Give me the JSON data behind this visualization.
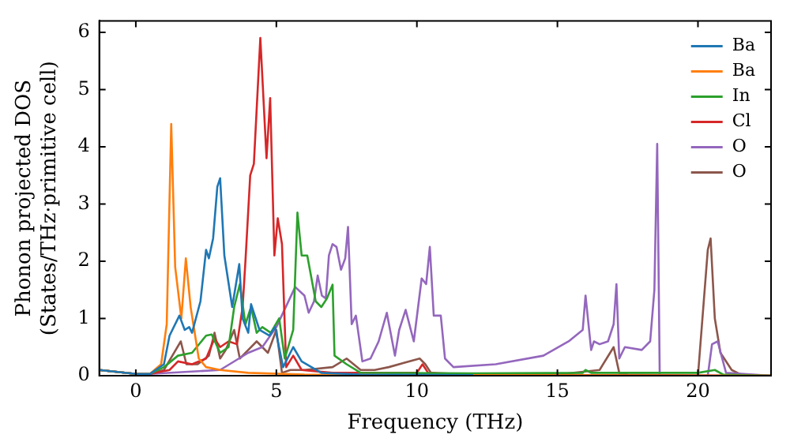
{
  "chart_data": {
    "type": "line",
    "xlabel": "Frequency (THz)",
    "ylabel": "Phonon projected DOS\n(States/THz·primitive cell)",
    "xlim": [
      -1.3,
      22.6
    ],
    "ylim": [
      0,
      6.2
    ],
    "xticks": [
      0,
      5,
      10,
      15,
      20
    ],
    "yticks": [
      0,
      1,
      2,
      3,
      4,
      5,
      6
    ],
    "grid": false,
    "legend": "top right",
    "marker": "none",
    "line_style": "solid",
    "series": [
      {
        "name": "Ba",
        "color": "#1f77b4",
        "x": [
          -1.3,
          0,
          0.5,
          1.0,
          1.2,
          1.55,
          1.74,
          1.9,
          2.0,
          2.3,
          2.5,
          2.6,
          2.75,
          2.9,
          3.0,
          3.15,
          3.43,
          3.68,
          3.8,
          4.0,
          4.1,
          4.4,
          4.75,
          4.95,
          5.24,
          5.6,
          5.9,
          6.6,
          8,
          12
        ],
        "values": [
          0.1,
          0.03,
          0.03,
          0.2,
          0.7,
          1.05,
          0.8,
          0.85,
          0.75,
          1.3,
          2.2,
          2.05,
          2.4,
          3.3,
          3.45,
          2.1,
          1.2,
          1.95,
          1.0,
          0.75,
          1.25,
          0.8,
          0.7,
          0.85,
          0.15,
          0.5,
          0.25,
          0.05,
          0.02,
          0.01
        ]
      },
      {
        "name": "Ba",
        "color": "#ff7f0e",
        "x": [
          -1.3,
          0,
          0.5,
          0.9,
          1.1,
          1.26,
          1.4,
          1.62,
          1.78,
          1.95,
          2.24,
          2.5,
          3.0,
          4.0,
          6,
          10,
          22.6
        ],
        "values": [
          0.1,
          0.03,
          0.03,
          0.2,
          0.9,
          4.4,
          1.9,
          1.0,
          2.05,
          1.2,
          0.3,
          0.15,
          0.1,
          0.05,
          0.02,
          0.01,
          0.0
        ]
      },
      {
        "name": "In",
        "color": "#2ca02c",
        "x": [
          -1.3,
          0,
          0.5,
          1.0,
          1.5,
          2.0,
          2.5,
          2.7,
          3.0,
          3.3,
          3.5,
          3.7,
          3.9,
          4.1,
          4.3,
          4.5,
          4.8,
          5.1,
          5.3,
          5.6,
          5.75,
          5.9,
          6.1,
          6.4,
          6.6,
          6.8,
          7.0,
          7.07,
          7.5,
          8,
          12,
          15.9,
          16.0,
          16.2,
          20,
          20.6,
          20.9,
          22.6
        ],
        "values": [
          0.1,
          0.03,
          0.03,
          0.15,
          0.35,
          0.4,
          0.7,
          0.72,
          0.4,
          0.5,
          1.2,
          1.6,
          0.9,
          1.2,
          0.75,
          0.85,
          0.75,
          1.0,
          0.3,
          0.8,
          2.85,
          2.1,
          2.1,
          1.3,
          1.2,
          1.35,
          1.59,
          0.35,
          0.2,
          0.05,
          0.04,
          0.05,
          0.1,
          0.05,
          0.05,
          0.1,
          0.02,
          0.0
        ]
      },
      {
        "name": "Cl",
        "color": "#d62728",
        "x": [
          -1.3,
          0,
          0.5,
          1.2,
          1.5,
          2.0,
          2.5,
          2.8,
          3.0,
          3.3,
          3.6,
          3.8,
          3.9,
          4.07,
          4.2,
          4.43,
          4.65,
          4.78,
          4.93,
          5.05,
          5.2,
          5.35,
          5.6,
          5.9,
          7,
          10,
          10.2,
          10.4,
          12,
          22.6
        ],
        "values": [
          0.1,
          0.03,
          0.03,
          0.1,
          0.25,
          0.2,
          0.3,
          0.65,
          0.5,
          0.6,
          0.55,
          1.2,
          2.0,
          3.5,
          3.7,
          5.9,
          3.8,
          4.85,
          2.1,
          2.75,
          2.3,
          0.15,
          0.35,
          0.1,
          0.05,
          0.05,
          0.2,
          0.05,
          0.02,
          0.0
        ]
      },
      {
        "name": "O",
        "color": "#9467bd",
        "x": [
          -1.3,
          0,
          0.5,
          3.0,
          4.0,
          4.5,
          5.0,
          5.67,
          6.0,
          6.15,
          6.34,
          6.47,
          6.62,
          6.76,
          6.87,
          7.0,
          7.14,
          7.3,
          7.45,
          7.55,
          7.68,
          7.83,
          8.06,
          8.35,
          8.64,
          8.93,
          9.22,
          9.37,
          9.6,
          9.89,
          10.17,
          10.33,
          10.46,
          10.6,
          10.85,
          11.0,
          11.3,
          12.8,
          14.5,
          15.4,
          15.9,
          16.0,
          16.2,
          16.3,
          16.5,
          16.8,
          17.0,
          17.1,
          17.2,
          17.4,
          18.0,
          18.3,
          18.45,
          18.55,
          18.64,
          20.35,
          20.5,
          20.7,
          21.0,
          22.6
        ],
        "values": [
          0.1,
          0.03,
          0.03,
          0.1,
          0.4,
          0.5,
          0.85,
          1.55,
          1.4,
          1.1,
          1.3,
          1.75,
          1.4,
          1.35,
          2.1,
          2.3,
          2.25,
          1.85,
          2.05,
          2.6,
          0.9,
          1.05,
          0.25,
          0.3,
          0.6,
          1.1,
          0.35,
          0.8,
          1.15,
          0.6,
          1.7,
          1.6,
          2.25,
          1.05,
          1.05,
          0.3,
          0.15,
          0.2,
          0.35,
          0.6,
          0.8,
          1.4,
          0.45,
          0.6,
          0.55,
          0.6,
          0.9,
          1.6,
          0.3,
          0.5,
          0.45,
          0.6,
          1.5,
          4.05,
          0.0,
          0.0,
          0.55,
          0.6,
          0.05,
          0.0
        ]
      },
      {
        "name": "O",
        "color": "#8c564b",
        "x": [
          -1.3,
          0,
          0.5,
          1.0,
          1.3,
          1.6,
          1.8,
          2.2,
          2.6,
          2.8,
          3.0,
          3.2,
          3.5,
          3.7,
          4.0,
          4.3,
          4.7,
          5.0,
          5.2,
          5.5,
          6,
          7.0,
          7.5,
          8,
          8.5,
          9,
          10.1,
          10.3,
          10.5,
          11,
          15,
          16.5,
          17.0,
          17.2,
          17.5,
          20.0,
          20.35,
          20.45,
          20.6,
          20.8,
          21.2,
          21.6,
          22.6
        ],
        "values": [
          0.1,
          0.03,
          0.03,
          0.1,
          0.35,
          0.6,
          0.2,
          0.2,
          0.35,
          0.75,
          0.3,
          0.45,
          0.8,
          0.3,
          0.45,
          0.6,
          0.4,
          0.8,
          0.05,
          0.1,
          0.1,
          0.15,
          0.3,
          0.1,
          0.1,
          0.15,
          0.3,
          0.2,
          0.05,
          0.02,
          0.02,
          0.1,
          0.5,
          0.05,
          0.02,
          0.0,
          2.2,
          2.4,
          1.0,
          0.4,
          0.1,
          0.0,
          0.0
        ]
      }
    ]
  }
}
